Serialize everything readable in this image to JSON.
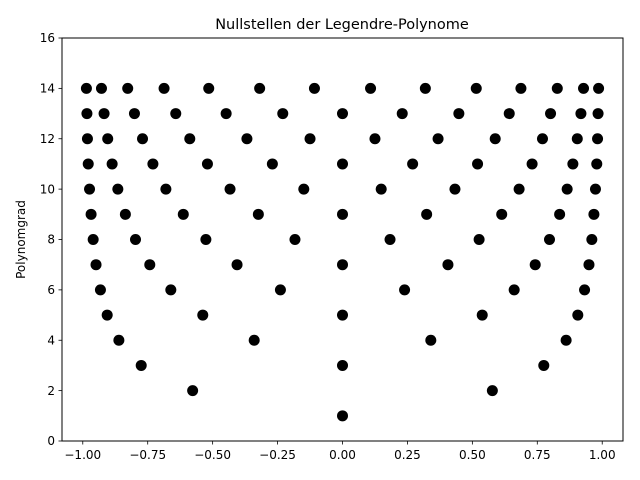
{
  "chart_data": {
    "type": "scatter",
    "title": "Nullstellen der Legendre-Polynome",
    "xlabel": "",
    "ylabel": "Polynomgrad",
    "xlim": [
      -1.08,
      1.08
    ],
    "ylim": [
      0,
      16
    ],
    "x_ticks": [
      -1.0,
      -0.75,
      -0.5,
      -0.25,
      0.0,
      0.25,
      0.5,
      0.75,
      1.0
    ],
    "x_tick_labels": [
      "−1.00",
      "−0.75",
      "−0.50",
      "−0.25",
      "0.00",
      "0.25",
      "0.50",
      "0.75",
      "1.00"
    ],
    "y_ticks": [
      0,
      2,
      4,
      6,
      8,
      10,
      12,
      14,
      16
    ],
    "y_tick_labels": [
      "0",
      "2",
      "4",
      "6",
      "8",
      "10",
      "12",
      "14",
      "16"
    ],
    "grid": false,
    "legend": "none",
    "marker_color": "#000000",
    "degrees": [
      1,
      2,
      3,
      4,
      5,
      6,
      7,
      8,
      9,
      10,
      11,
      12,
      13,
      14
    ],
    "series": [
      {
        "points": [
          [
            0.0,
            1
          ],
          [
            -0.577,
            2
          ],
          [
            0.577,
            2
          ],
          [
            -0.775,
            3
          ],
          [
            0.0,
            3
          ],
          [
            0.775,
            3
          ],
          [
            -0.861,
            4
          ],
          [
            -0.34,
            4
          ],
          [
            0.34,
            4
          ],
          [
            0.861,
            4
          ],
          [
            -0.906,
            5
          ],
          [
            -0.538,
            5
          ],
          [
            0.0,
            5
          ],
          [
            0.538,
            5
          ],
          [
            0.906,
            5
          ],
          [
            -0.932,
            6
          ],
          [
            -0.661,
            6
          ],
          [
            -0.239,
            6
          ],
          [
            0.239,
            6
          ],
          [
            0.661,
            6
          ],
          [
            0.932,
            6
          ],
          [
            -0.949,
            7
          ],
          [
            -0.742,
            7
          ],
          [
            -0.406,
            7
          ],
          [
            0.0,
            7
          ],
          [
            0.406,
            7
          ],
          [
            0.742,
            7
          ],
          [
            0.949,
            7
          ],
          [
            -0.96,
            8
          ],
          [
            -0.797,
            8
          ],
          [
            -0.526,
            8
          ],
          [
            -0.183,
            8
          ],
          [
            0.183,
            8
          ],
          [
            0.526,
            8
          ],
          [
            0.797,
            8
          ],
          [
            0.96,
            8
          ],
          [
            -0.968,
            9
          ],
          [
            -0.836,
            9
          ],
          [
            -0.613,
            9
          ],
          [
            -0.324,
            9
          ],
          [
            0.0,
            9
          ],
          [
            0.324,
            9
          ],
          [
            0.613,
            9
          ],
          [
            0.836,
            9
          ],
          [
            0.968,
            9
          ],
          [
            -0.974,
            10
          ],
          [
            -0.865,
            10
          ],
          [
            -0.68,
            10
          ],
          [
            -0.433,
            10
          ],
          [
            -0.149,
            10
          ],
          [
            0.149,
            10
          ],
          [
            0.433,
            10
          ],
          [
            0.68,
            10
          ],
          [
            0.865,
            10
          ],
          [
            0.974,
            10
          ],
          [
            -0.979,
            11
          ],
          [
            -0.887,
            11
          ],
          [
            -0.73,
            11
          ],
          [
            -0.52,
            11
          ],
          [
            -0.27,
            11
          ],
          [
            0.0,
            11
          ],
          [
            0.27,
            11
          ],
          [
            0.52,
            11
          ],
          [
            0.73,
            11
          ],
          [
            0.887,
            11
          ],
          [
            0.979,
            11
          ],
          [
            -0.982,
            12
          ],
          [
            -0.904,
            12
          ],
          [
            -0.77,
            12
          ],
          [
            -0.588,
            12
          ],
          [
            -0.368,
            12
          ],
          [
            -0.125,
            12
          ],
          [
            0.125,
            12
          ],
          [
            0.368,
            12
          ],
          [
            0.588,
            12
          ],
          [
            0.77,
            12
          ],
          [
            0.904,
            12
          ],
          [
            0.982,
            12
          ],
          [
            -0.984,
            13
          ],
          [
            -0.918,
            13
          ],
          [
            -0.801,
            13
          ],
          [
            -0.642,
            13
          ],
          [
            -0.448,
            13
          ],
          [
            -0.23,
            13
          ],
          [
            0.0,
            13
          ],
          [
            0.23,
            13
          ],
          [
            0.448,
            13
          ],
          [
            0.642,
            13
          ],
          [
            0.801,
            13
          ],
          [
            0.918,
            13
          ],
          [
            0.984,
            13
          ],
          [
            -0.986,
            14
          ],
          [
            -0.928,
            14
          ],
          [
            -0.827,
            14
          ],
          [
            -0.687,
            14
          ],
          [
            -0.515,
            14
          ],
          [
            -0.319,
            14
          ],
          [
            -0.108,
            14
          ],
          [
            0.108,
            14
          ],
          [
            0.319,
            14
          ],
          [
            0.515,
            14
          ],
          [
            0.687,
            14
          ],
          [
            0.827,
            14
          ],
          [
            0.928,
            14
          ],
          [
            0.986,
            14
          ]
        ]
      }
    ]
  }
}
